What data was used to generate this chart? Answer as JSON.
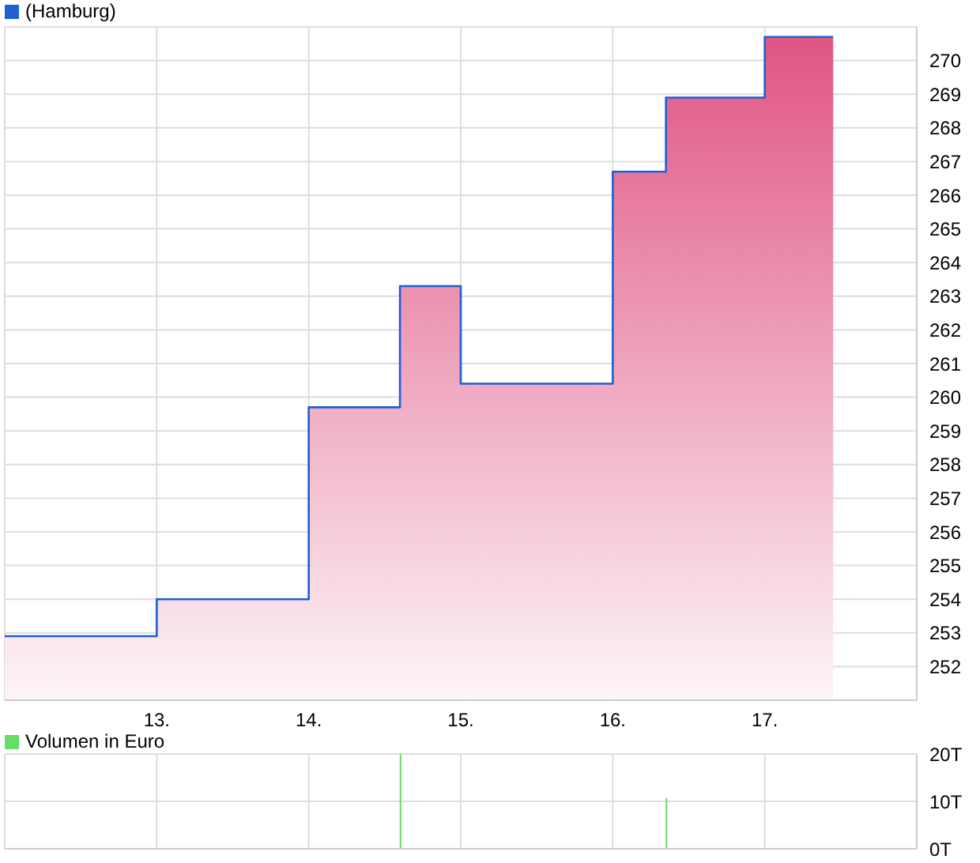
{
  "chart_data": [
    {
      "type": "area",
      "x": [
        12,
        13,
        13,
        14,
        14,
        14.6,
        14.6,
        15,
        15,
        16,
        16,
        16.35,
        16.35,
        17,
        17,
        17.45
      ],
      "series": [
        {
          "name": "(Hamburg)",
          "color": "#1f5fd0",
          "values": [
            252.9,
            252.9,
            254.0,
            254.0,
            259.7,
            259.7,
            263.3,
            263.3,
            260.4,
            260.4,
            266.7,
            266.7,
            268.9,
            268.9,
            270.7,
            270.7
          ]
        }
      ],
      "xlim": [
        12,
        18
      ],
      "xticks": [
        {
          "value": 13,
          "label": "13."
        },
        {
          "value": 14,
          "label": "14."
        },
        {
          "value": 15,
          "label": "15."
        },
        {
          "value": 16,
          "label": "16."
        },
        {
          "value": 17,
          "label": "17."
        }
      ],
      "ylim": [
        251,
        271
      ],
      "yticks": [
        252,
        253,
        254,
        255,
        256,
        257,
        258,
        259,
        260,
        261,
        262,
        263,
        264,
        265,
        266,
        267,
        268,
        269,
        270
      ],
      "grid": true,
      "legend": "top left"
    },
    {
      "type": "bar",
      "x": [
        14.6,
        16.35
      ],
      "series": [
        {
          "name": "Volumen in Euro",
          "color": "#66dd66",
          "values": [
            20,
            10.7
          ]
        }
      ],
      "xlim": [
        12,
        18
      ],
      "xticks": [
        13,
        14,
        15,
        16,
        17
      ],
      "ylim": [
        0,
        20
      ],
      "yticks": [
        {
          "value": 0,
          "label": "0T"
        },
        {
          "value": 10,
          "label": "10T"
        },
        {
          "value": 20,
          "label": "20T"
        }
      ],
      "grid": true,
      "legend": "top left",
      "tick_labels": "y"
    }
  ]
}
